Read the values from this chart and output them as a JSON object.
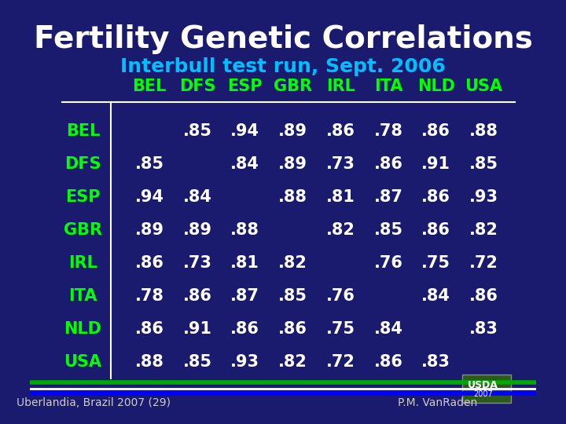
{
  "title": "Fertility Genetic Correlations",
  "subtitle": "Interbull test run, Sept. 2006",
  "countries": [
    "BEL",
    "DFS",
    "ESP",
    "GBR",
    "IRL",
    "ITA",
    "NLD",
    "USA"
  ],
  "table": [
    [
      "",
      ".85",
      ".94",
      ".89",
      ".86",
      ".78",
      ".86",
      ".88"
    ],
    [
      ".85",
      "",
      ".84",
      ".89",
      ".73",
      ".86",
      ".91",
      ".85"
    ],
    [
      ".94",
      ".84",
      "",
      ".88",
      ".81",
      ".87",
      ".86",
      ".93"
    ],
    [
      ".89",
      ".89",
      ".88",
      "",
      ".82",
      ".85",
      ".86",
      ".82"
    ],
    [
      ".86",
      ".73",
      ".81",
      ".82",
      "",
      ".76",
      ".75",
      ".72"
    ],
    [
      ".78",
      ".86",
      ".87",
      ".85",
      ".76",
      "",
      ".84",
      ".86"
    ],
    [
      ".86",
      ".91",
      ".86",
      ".86",
      ".75",
      ".84",
      "",
      ".83"
    ],
    [
      ".88",
      ".85",
      ".93",
      ".82",
      ".72",
      ".86",
      ".83",
      ""
    ]
  ],
  "bg_color": "#1a1a6e",
  "title_color": "#ffffff",
  "subtitle_color": "#00bfff",
  "header_color": "#00ff00",
  "row_label_color": "#00ff00",
  "cell_color": "#ffffff",
  "footer_text_left": "Uberlandia, Brazil 2007 (29)",
  "footer_text_right": "P.M. VanRaden",
  "footer_color": "#cccccc",
  "line_color": "#ffffff",
  "green_bar_color": "#00aa00",
  "blue_bar_color": "#0000ff"
}
